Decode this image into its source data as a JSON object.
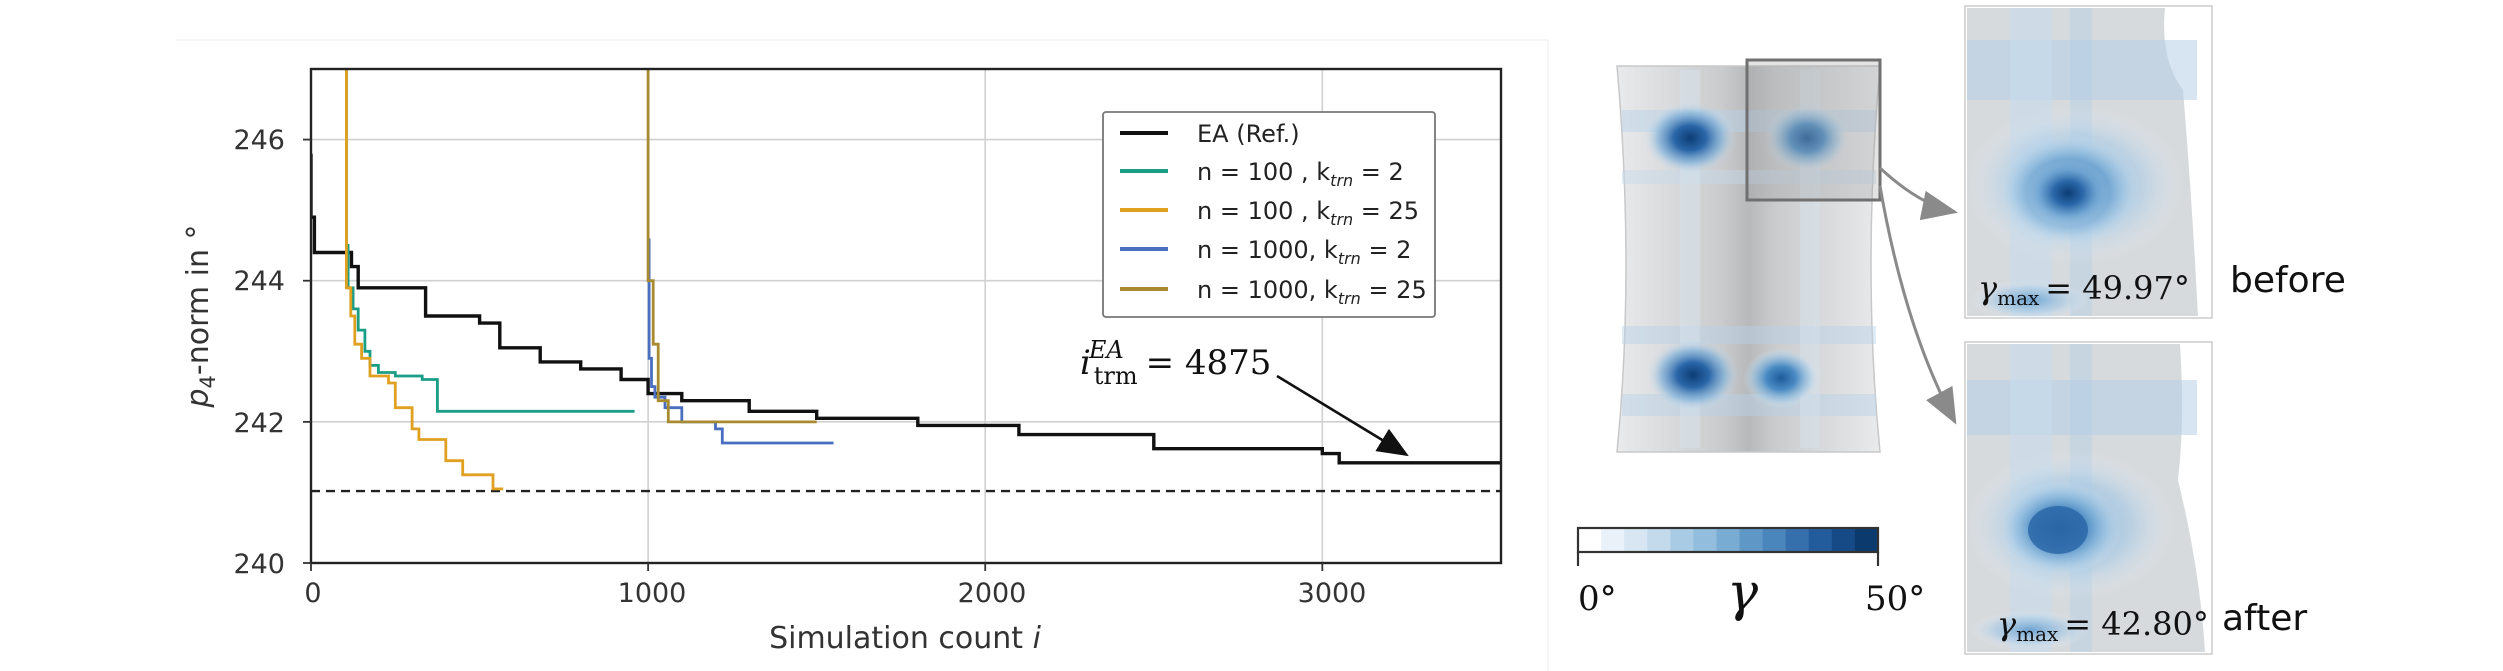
{
  "chart_data": {
    "type": "line",
    "xlabel": "Simulation count i",
    "ylabel": "p4-norm in °",
    "xlim": [
      0,
      3530
    ],
    "ylim": [
      240,
      247
    ],
    "xticks": [
      0,
      1000,
      2000,
      3000
    ],
    "yticks": [
      240,
      242,
      244,
      246
    ],
    "grid": true,
    "legend_position": "top-right",
    "reference_line": {
      "y": 241.02,
      "style": "dashed",
      "color": "#222222"
    },
    "annotation": {
      "label": "i_trm^EA = 4875",
      "text": "4875",
      "points_to": [
        3250,
        241.42
      ]
    },
    "series": [
      {
        "name": "EA (Ref.)",
        "legend": "EA (Ref.)",
        "color": "#111111",
        "x": [
          0,
          0,
          10,
          10,
          120,
          120,
          140,
          140,
          340,
          340,
          500,
          500,
          560,
          560,
          680,
          680,
          800,
          800,
          920,
          920,
          1000,
          1000,
          1100,
          1100,
          1300,
          1300,
          1500,
          1500,
          1800,
          1800,
          2100,
          2100,
          2500,
          2500,
          3000,
          3000,
          3050,
          3050,
          3530
        ],
        "y": [
          245.8,
          244.9,
          244.9,
          244.4,
          244.4,
          244.2,
          244.2,
          243.9,
          243.9,
          243.5,
          243.5,
          243.4,
          243.4,
          243.05,
          243.05,
          242.85,
          242.85,
          242.75,
          242.75,
          242.6,
          242.6,
          242.4,
          242.4,
          242.3,
          242.3,
          242.15,
          242.15,
          242.05,
          242.05,
          241.95,
          241.95,
          241.82,
          241.82,
          241.62,
          241.62,
          241.55,
          241.55,
          241.42,
          241.42
        ]
      },
      {
        "name": "n=100, k_trn=2",
        "legend": "n = 100  , k_trn = 2",
        "color": "#1a9e86",
        "x": [
          105,
          105,
          110,
          110,
          125,
          125,
          140,
          140,
          160,
          160,
          175,
          175,
          200,
          200,
          250,
          250,
          330,
          330,
          375,
          375,
          960
        ],
        "y": [
          247,
          244.5,
          244.5,
          243.9,
          243.9,
          243.6,
          243.6,
          243.3,
          243.3,
          243.0,
          243.0,
          242.8,
          242.8,
          242.7,
          242.7,
          242.65,
          242.65,
          242.6,
          242.6,
          242.15,
          242.15
        ]
      },
      {
        "name": "n=100, k_trn=25",
        "legend": "n = 100  , k_trn = 25",
        "color": "#e0a020",
        "x": [
          105,
          105,
          118,
          118,
          130,
          130,
          150,
          150,
          175,
          175,
          230,
          230,
          250,
          250,
          300,
          300,
          320,
          320,
          400,
          400,
          450,
          450,
          540,
          540,
          570
        ],
        "y": [
          247,
          243.9,
          243.9,
          243.5,
          243.5,
          243.1,
          243.1,
          242.9,
          242.9,
          242.65,
          242.65,
          242.55,
          242.55,
          242.2,
          242.2,
          241.9,
          241.9,
          241.75,
          241.75,
          241.45,
          241.45,
          241.25,
          241.25,
          241.05,
          241.05
        ]
      },
      {
        "name": "n=1000, k_trn=2",
        "legend": "n = 1000, k_trn = 2",
        "color": "#4a6fc0",
        "x": [
          1003,
          1003,
          1010,
          1010,
          1020,
          1020,
          1050,
          1050,
          1100,
          1100,
          1200,
          1200,
          1220,
          1220,
          1550
        ],
        "y": [
          244.6,
          242.9,
          242.9,
          242.5,
          242.5,
          242.35,
          242.35,
          242.2,
          242.2,
          242.0,
          242.0,
          241.9,
          241.9,
          241.7,
          241.7
        ]
      },
      {
        "name": "n=1000, k_trn=25",
        "legend": "n = 1000, k_trn = 25",
        "color": "#a88a30",
        "x": [
          1000,
          1000,
          1015,
          1015,
          1030,
          1030,
          1060,
          1060,
          1500
        ],
        "y": [
          247,
          244.0,
          244.0,
          243.1,
          243.1,
          242.3,
          242.3,
          242.0,
          242.0
        ]
      }
    ]
  },
  "tick_text": {
    "x": [
      "0",
      "1000",
      "2000",
      "3000"
    ],
    "y": [
      "240",
      "242",
      "244",
      "246"
    ]
  },
  "axes_text": {
    "xlabel_main": "Simulation count ",
    "xlabel_var": "i",
    "ylabel_var": "p",
    "ylabel_sub": "4",
    "ylabel_rest": "-norm in °"
  },
  "annotation_text": {
    "prefix": "i",
    "sub": "trm",
    "sup": "EA",
    "value": "=  4875"
  },
  "legend_text": [
    "EA (Ref.)",
    "n = 100  , k",
    "trn",
    " = 2",
    "n = 100  , k",
    "trn",
    " = 25",
    "n = 1000, k",
    "trn",
    " = 2",
    "n = 1000, k",
    "trn",
    " = 25"
  ],
  "colorbar": {
    "min_label": "0°",
    "max_label": "50°",
    "symbol": "γ",
    "colors": [
      "#ffffff",
      "#eaf1f8",
      "#d7e6f2",
      "#c3d9ec",
      "#aacbe4",
      "#92bddc",
      "#79acd2",
      "#5f98c6",
      "#4a85bb",
      "#3570ad",
      "#235c9c",
      "#154a86",
      "#0a3a6e"
    ]
  },
  "insets": [
    {
      "label_sym": "γ",
      "label_sub": "max",
      "label_value": "= 49.97°",
      "caption": "before"
    },
    {
      "label_sym": "γ",
      "label_sub": "max",
      "label_value": "= 42.80°",
      "caption": "after"
    }
  ]
}
